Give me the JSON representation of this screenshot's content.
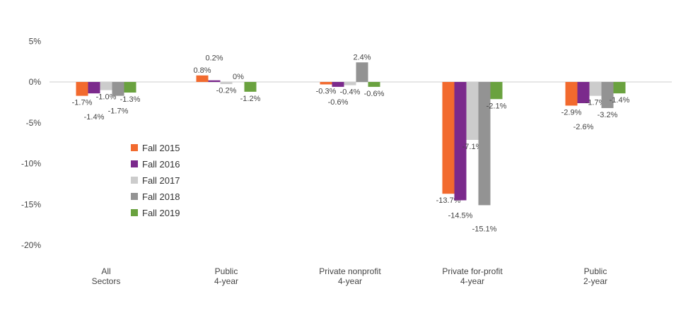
{
  "chart_data": {
    "type": "bar",
    "categories": [
      [
        "All",
        "Sectors"
      ],
      [
        "Public",
        "4-year"
      ],
      [
        "Private nonprofit",
        "4-year"
      ],
      [
        "Private for-profit",
        "4-year"
      ],
      [
        "Public",
        "2-year"
      ]
    ],
    "series": [
      {
        "name": "Fall 2015",
        "color": "#f26a2e",
        "values": [
          -1.7,
          0.8,
          -0.3,
          -13.7,
          -2.9
        ],
        "labels": [
          "-1.7%",
          "0.8%",
          "-0.3%",
          "-13.7%",
          "-2.9%"
        ]
      },
      {
        "name": "Fall 2016",
        "color": "#7b2a8c",
        "values": [
          -1.4,
          0.2,
          -0.6,
          -14.5,
          -2.6
        ],
        "labels": [
          "-1.4%",
          "0.2%",
          "-0.6%",
          "-14.5%",
          "-2.6%"
        ]
      },
      {
        "name": "Fall 2017",
        "color": "#cccccc",
        "values": [
          -1.0,
          -0.2,
          -0.4,
          -7.1,
          -1.7
        ],
        "labels": [
          "-1.0%",
          "-0.2%",
          "-0.4%",
          "-7.1%",
          "-1.7%"
        ]
      },
      {
        "name": "Fall 2018",
        "color": "#939393",
        "values": [
          -1.7,
          0,
          2.4,
          -15.1,
          -3.2
        ],
        "labels": [
          "-1.7%",
          "0%",
          "2.4%",
          "-15.1%",
          "-3.2%"
        ]
      },
      {
        "name": "Fall 2019",
        "color": "#6aa23f",
        "values": [
          -1.3,
          -1.2,
          -0.6,
          -2.1,
          -1.4
        ],
        "labels": [
          "-1.3%",
          "-1.2%",
          "-0.6%",
          "-2.1%",
          "-1.4%"
        ]
      }
    ],
    "yticks": [
      "5%",
      "0%",
      "-5%",
      "-10%",
      "-15%",
      "-20%"
    ],
    "ylim": [
      -20,
      5
    ],
    "grid": false,
    "legend": "left, inside"
  }
}
